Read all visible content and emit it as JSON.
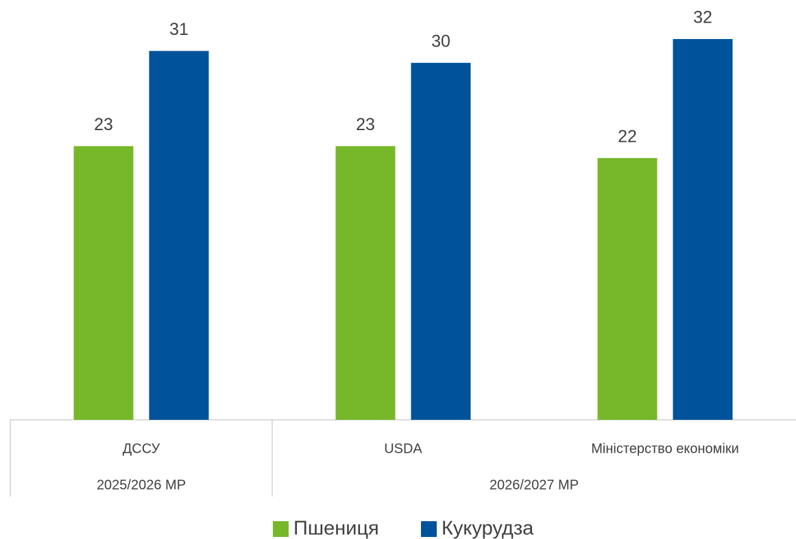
{
  "chart_data": {
    "type": "bar",
    "groups": [
      {
        "label": "2025/2026 МР",
        "categories": [
          "ДССУ"
        ]
      },
      {
        "label": "2026/2027 МР",
        "categories": [
          "USDA",
          "Міністерство економіки"
        ]
      }
    ],
    "series": [
      {
        "name": "Пшениця",
        "color": "#76b82a",
        "values": [
          23,
          23,
          22
        ]
      },
      {
        "name": "Кукурудза",
        "color": "#00529b",
        "values": [
          31,
          30,
          32
        ]
      }
    ],
    "legend": "bottom"
  }
}
